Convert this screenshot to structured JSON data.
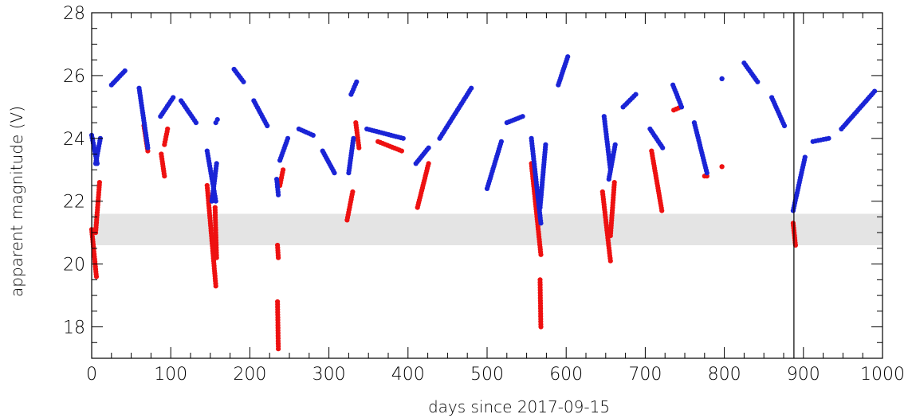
{
  "chart_data": {
    "type": "scatter",
    "xlabel": "days since 2017-09-15",
    "ylabel": "apparent magnitude (V)",
    "xlim": [
      0,
      1000
    ],
    "ylim": [
      17,
      28
    ],
    "x_ticks": [
      "0",
      "100",
      "200",
      "300",
      "400",
      "500",
      "600",
      "700",
      "800",
      "900",
      "1000"
    ],
    "y_ticks": [
      "18",
      "20",
      "22",
      "24",
      "26",
      "28"
    ],
    "grid": false,
    "shaded_band": {
      "y_from": 20.6,
      "y_to": 21.6,
      "color": "#e4e4e4"
    },
    "vertical_line": {
      "x": 888,
      "color": "#000000"
    },
    "colors": {
      "red": "#ee1111",
      "blue": "#1a24d6"
    },
    "segments": [
      {
        "x0": 0,
        "x1": 7,
        "y0": 24.1,
        "y1": 23.2,
        "color": "blue"
      },
      {
        "x0": 0,
        "x1": 6,
        "y0": 21.1,
        "y1": 19.6,
        "color": "red"
      },
      {
        "x0": 5,
        "x1": 11,
        "y0": 23.2,
        "y1": 24.0,
        "color": "blue"
      },
      {
        "x0": 5,
        "x1": 10,
        "y0": 21.0,
        "y1": 22.6,
        "color": "red"
      },
      {
        "x0": 25,
        "x1": 42,
        "y0": 25.7,
        "y1": 26.15,
        "color": "blue"
      },
      {
        "x0": 60,
        "x1": 71,
        "y0": 25.6,
        "y1": 23.7,
        "color": "blue"
      },
      {
        "x0": 66,
        "x1": 71,
        "y0": 24.4,
        "y1": 23.6,
        "color": "red"
      },
      {
        "x0": 88,
        "x1": 92,
        "y0": 23.5,
        "y1": 22.8,
        "color": "red"
      },
      {
        "x0": 87,
        "x1": 103,
        "y0": 24.7,
        "y1": 25.3,
        "color": "blue"
      },
      {
        "x0": 92,
        "x1": 96,
        "y0": 23.8,
        "y1": 24.3,
        "color": "red"
      },
      {
        "x0": 113,
        "x1": 132,
        "y0": 25.2,
        "y1": 24.5,
        "color": "blue"
      },
      {
        "x0": 146,
        "x1": 157,
        "y0": 23.6,
        "y1": 22.0,
        "color": "blue"
      },
      {
        "x0": 146,
        "x1": 157,
        "y0": 22.5,
        "y1": 19.3,
        "color": "red"
      },
      {
        "x0": 152,
        "x1": 158,
        "y0": 22.0,
        "y1": 23.2,
        "color": "blue"
      },
      {
        "x0": 156,
        "x1": 158,
        "y0": 21.8,
        "y1": 20.2,
        "color": "red"
      },
      {
        "x0": 157,
        "x1": 159,
        "y0": 24.5,
        "y1": 24.6,
        "color": "blue"
      },
      {
        "x0": 180,
        "x1": 192,
        "y0": 26.2,
        "y1": 25.8,
        "color": "blue"
      },
      {
        "x0": 205,
        "x1": 222,
        "y0": 25.2,
        "y1": 24.4,
        "color": "blue"
      },
      {
        "x0": 234,
        "x1": 236,
        "y0": 22.7,
        "y1": 22.2,
        "color": "blue"
      },
      {
        "x0": 235,
        "x1": 236,
        "y0": 20.6,
        "y1": 20.2,
        "color": "red"
      },
      {
        "x0": 235,
        "x1": 236,
        "y0": 18.8,
        "y1": 17.3,
        "color": "red"
      },
      {
        "x0": 238,
        "x1": 248,
        "y0": 23.3,
        "y1": 24.0,
        "color": "blue"
      },
      {
        "x0": 238,
        "x1": 242,
        "y0": 22.5,
        "y1": 23.0,
        "color": "red"
      },
      {
        "x0": 262,
        "x1": 280,
        "y0": 24.3,
        "y1": 24.1,
        "color": "blue"
      },
      {
        "x0": 292,
        "x1": 307,
        "y0": 23.6,
        "y1": 22.9,
        "color": "blue"
      },
      {
        "x0": 323,
        "x1": 330,
        "y0": 21.4,
        "y1": 22.3,
        "color": "red"
      },
      {
        "x0": 325,
        "x1": 331,
        "y0": 22.9,
        "y1": 24.0,
        "color": "blue"
      },
      {
        "x0": 328,
        "x1": 335,
        "y0": 25.4,
        "y1": 25.8,
        "color": "blue"
      },
      {
        "x0": 334,
        "x1": 338,
        "y0": 24.5,
        "y1": 23.7,
        "color": "red"
      },
      {
        "x0": 348,
        "x1": 394,
        "y0": 24.3,
        "y1": 24.0,
        "color": "blue"
      },
      {
        "x0": 362,
        "x1": 392,
        "y0": 23.9,
        "y1": 23.6,
        "color": "red"
      },
      {
        "x0": 412,
        "x1": 426,
        "y0": 21.8,
        "y1": 23.2,
        "color": "red"
      },
      {
        "x0": 410,
        "x1": 426,
        "y0": 23.2,
        "y1": 23.7,
        "color": "blue"
      },
      {
        "x0": 440,
        "x1": 480,
        "y0": 24.0,
        "y1": 25.6,
        "color": "blue"
      },
      {
        "x0": 500,
        "x1": 518,
        "y0": 22.4,
        "y1": 23.9,
        "color": "blue"
      },
      {
        "x0": 525,
        "x1": 545,
        "y0": 24.5,
        "y1": 24.7,
        "color": "blue"
      },
      {
        "x0": 556,
        "x1": 568,
        "y0": 24.0,
        "y1": 21.3,
        "color": "blue"
      },
      {
        "x0": 556,
        "x1": 568,
        "y0": 23.2,
        "y1": 20.3,
        "color": "red"
      },
      {
        "x0": 567,
        "x1": 568,
        "y0": 19.5,
        "y1": 18.0,
        "color": "red"
      },
      {
        "x0": 567,
        "x1": 574,
        "y0": 21.8,
        "y1": 23.8,
        "color": "blue"
      },
      {
        "x0": 590,
        "x1": 602,
        "y0": 25.7,
        "y1": 26.6,
        "color": "blue"
      },
      {
        "x0": 648,
        "x1": 656,
        "y0": 24.7,
        "y1": 23.0,
        "color": "blue"
      },
      {
        "x0": 646,
        "x1": 656,
        "y0": 22.3,
        "y1": 20.1,
        "color": "red"
      },
      {
        "x0": 654,
        "x1": 662,
        "y0": 22.7,
        "y1": 23.8,
        "color": "blue"
      },
      {
        "x0": 656,
        "x1": 661,
        "y0": 20.9,
        "y1": 22.6,
        "color": "red"
      },
      {
        "x0": 672,
        "x1": 688,
        "y0": 25.0,
        "y1": 25.4,
        "color": "blue"
      },
      {
        "x0": 706,
        "x1": 722,
        "y0": 24.3,
        "y1": 23.7,
        "color": "blue"
      },
      {
        "x0": 708,
        "x1": 721,
        "y0": 23.6,
        "y1": 21.7,
        "color": "red"
      },
      {
        "x0": 735,
        "x1": 746,
        "y0": 25.7,
        "y1": 25.0,
        "color": "blue"
      },
      {
        "x0": 736,
        "x1": 745,
        "y0": 24.9,
        "y1": 25.0,
        "color": "red"
      },
      {
        "x0": 762,
        "x1": 778,
        "y0": 24.5,
        "y1": 22.9,
        "color": "blue"
      },
      {
        "x0": 775,
        "x1": 778,
        "y0": 22.8,
        "y1": 22.8,
        "color": "red"
      },
      {
        "x0": 797,
        "x1": 797,
        "y0": 25.9,
        "y1": 25.9,
        "color": "blue"
      },
      {
        "x0": 797,
        "x1": 797,
        "y0": 23.1,
        "y1": 23.1,
        "color": "red"
      },
      {
        "x0": 825,
        "x1": 842,
        "y0": 26.4,
        "y1": 25.8,
        "color": "blue"
      },
      {
        "x0": 860,
        "x1": 876,
        "y0": 25.3,
        "y1": 24.4,
        "color": "blue"
      },
      {
        "x0": 887,
        "x1": 890,
        "y0": 21.3,
        "y1": 20.6,
        "color": "red"
      },
      {
        "x0": 887,
        "x1": 902,
        "y0": 21.7,
        "y1": 23.4,
        "color": "blue"
      },
      {
        "x0": 912,
        "x1": 932,
        "y0": 23.9,
        "y1": 24.0,
        "color": "blue"
      },
      {
        "x0": 948,
        "x1": 990,
        "y0": 24.3,
        "y1": 25.5,
        "color": "blue"
      }
    ]
  }
}
